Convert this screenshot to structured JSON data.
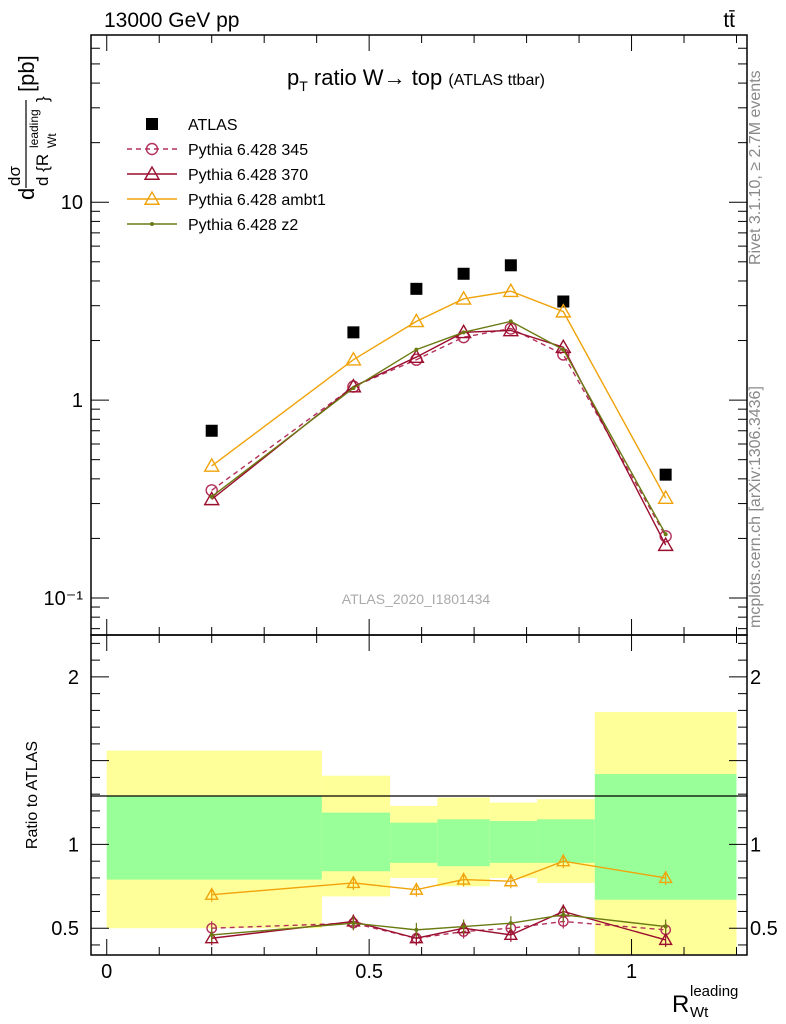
{
  "header": {
    "left": "13000 GeV pp",
    "right": "tt̄"
  },
  "side_labels": {
    "rivet": "Rivet 3.1.10, ≥ 2.7M events",
    "source": "mcplots.cern.ch [arXiv:1306.3436]"
  },
  "chart_data": [
    {
      "type": "line",
      "panel": "main",
      "title": "p_T ratio W→ top",
      "title_suffix": "(ATLAS ttbar)",
      "watermark": "ATLAS_2020_I1801434",
      "ylabel": "dσ/d{R_Wt^leading} [pb]",
      "yscale": "log",
      "ylim": [
        0.065,
        70
      ],
      "xlim": [
        -0.03,
        1.22
      ],
      "ytick_labels": [
        "10⁻¹",
        "1",
        "10"
      ],
      "x": [
        0.2,
        0.47,
        0.59,
        0.68,
        0.77,
        0.87,
        1.065
      ],
      "legend_position": "top-left",
      "series": [
        {
          "name": "ATLAS",
          "marker": "square",
          "color": "#000000",
          "values": [
            0.7,
            2.2,
            3.65,
            4.35,
            4.8,
            3.15,
            0.42
          ]
        },
        {
          "name": "Pythia 6.428 345",
          "marker": "circle",
          "dash": "dashed",
          "color": "#b2305a",
          "values": [
            0.35,
            1.17,
            1.6,
            2.08,
            2.3,
            1.7,
            0.205
          ]
        },
        {
          "name": "Pythia 6.428 370",
          "marker": "triangle",
          "color": "#9a0f2e",
          "values": [
            0.315,
            1.17,
            1.65,
            2.2,
            2.25,
            1.85,
            0.185
          ]
        },
        {
          "name": "Pythia 6.428 ambt1",
          "marker": "triangle",
          "color": "#f0a30a",
          "values": [
            0.465,
            1.6,
            2.5,
            3.25,
            3.55,
            2.8,
            0.32
          ]
        },
        {
          "name": "Pythia 6.428 z2",
          "marker": "dot",
          "color": "#6b7a12",
          "values": [
            0.325,
            1.15,
            1.8,
            2.2,
            2.5,
            1.8,
            0.21
          ]
        }
      ]
    },
    {
      "type": "line",
      "panel": "ratio",
      "ylabel": "Ratio to ATLAS",
      "xlabel": "R_Wt^leading",
      "ylim": [
        0.34,
        2.25
      ],
      "xlim": [
        -0.03,
        1.22
      ],
      "xticks": [
        0,
        0.5,
        1
      ],
      "xtick_labels": [
        "0",
        "0.5",
        "1"
      ],
      "yticks": [
        0.5,
        1,
        2
      ],
      "ytick_labels": [
        "0.5",
        "1",
        "2"
      ],
      "reference_line": 1,
      "x": [
        0.2,
        0.47,
        0.59,
        0.68,
        0.77,
        0.87,
        1.065
      ],
      "bands": {
        "edges": [
          0,
          0.41,
          0.54,
          0.63,
          0.73,
          0.82,
          0.93,
          1.2
        ],
        "yellow_low": [
          0.5,
          0.69,
          0.8,
          0.75,
          0.8,
          0.77,
          0.3
        ],
        "yellow_high": [
          1.56,
          1.41,
          1.23,
          1.28,
          1.25,
          1.27,
          1.79
        ],
        "green_low": [
          0.79,
          0.84,
          0.89,
          0.87,
          0.89,
          0.89,
          0.67
        ],
        "green_high": [
          1.29,
          1.19,
          1.13,
          1.15,
          1.14,
          1.15,
          1.42
        ]
      },
      "series": [
        {
          "name": "Pythia 6.428 345",
          "marker": "circle",
          "dash": "dashed",
          "color": "#b2305a",
          "values": [
            0.5,
            0.53,
            0.44,
            0.48,
            0.5,
            0.54,
            0.49
          ]
        },
        {
          "name": "Pythia 6.428 370",
          "marker": "triangle",
          "color": "#9a0f2e",
          "values": [
            0.44,
            0.54,
            0.44,
            0.5,
            0.46,
            0.6,
            0.43
          ]
        },
        {
          "name": "Pythia 6.428 ambt1",
          "marker": "triangle",
          "color": "#f0a30a",
          "values": [
            0.7,
            0.77,
            0.73,
            0.79,
            0.78,
            0.9,
            0.8
          ]
        },
        {
          "name": "Pythia 6.428 z2",
          "marker": "dot",
          "color": "#6b7a12",
          "values": [
            0.46,
            0.53,
            0.49,
            0.51,
            0.53,
            0.58,
            0.51
          ]
        }
      ]
    }
  ]
}
